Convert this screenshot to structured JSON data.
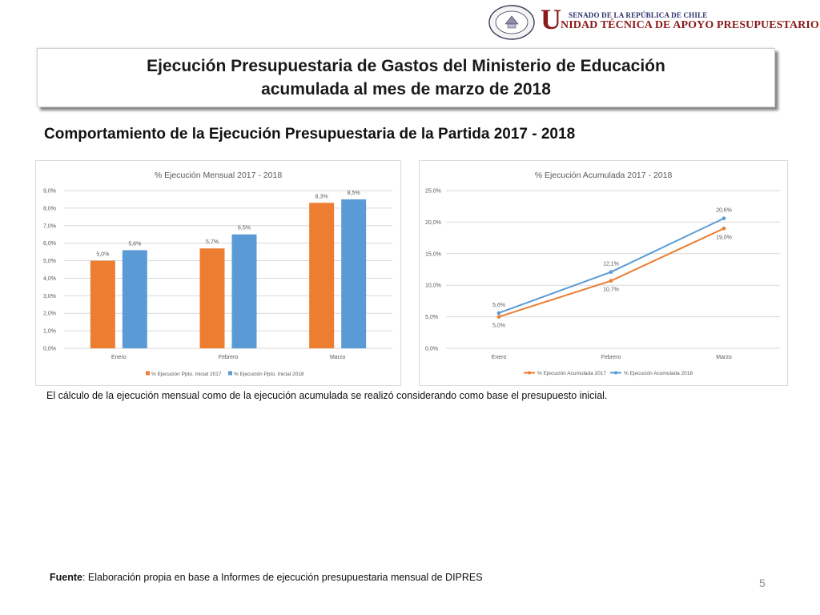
{
  "header": {
    "seal_text_top": "REPÚBLICA DE CHILE",
    "seal_text_bottom": "SENADO",
    "org_line1": "SENADO DE LA REPÚBLICA DE CHILE",
    "org_initial": "U",
    "org_line2": "NIDAD TÉCNICA DE APOYO PRESUPUESTARIO"
  },
  "title": {
    "line1": "Ejecución Presupuestaria de Gastos del Ministerio de Educación",
    "line2": "acumulada al mes de marzo de 2018"
  },
  "subtitle": "Comportamiento de la Ejecución Presupuestaria de la Partida 2017 - 2018",
  "note": "El cálculo de la ejecución mensual como de la ejecución acumulada se realizó considerando como base el presupuesto inicial.",
  "source": {
    "label": "Fuente",
    "text": ": Elaboración propia en base  a Informes de ejecución presupuestaria mensual de DIPRES"
  },
  "page_number": "5",
  "colors": {
    "series_2017": "#ed7d31",
    "series_2018": "#5b9bd5",
    "grid": "#d9d9d9",
    "axis_text": "#595959"
  },
  "chart_data": [
    {
      "type": "bar",
      "title": "% Ejecución Mensual 2017 - 2018",
      "categories": [
        "Enero",
        "Febrero",
        "Marzo"
      ],
      "series": [
        {
          "name": "% Ejecución Ppto. Inicial 2017",
          "values": [
            5.0,
            5.7,
            8.3
          ],
          "labels": [
            "5,0%",
            "5,7%",
            "8,3%"
          ],
          "color": "#ed7d31"
        },
        {
          "name": "% Ejecución Ppto. Inicial 2018",
          "values": [
            5.6,
            6.5,
            8.5
          ],
          "labels": [
            "5,6%",
            "6,5%",
            "8,5%"
          ],
          "color": "#5b9bd5"
        }
      ],
      "ylim": [
        0,
        9
      ],
      "yticks": [
        0,
        1,
        2,
        3,
        4,
        5,
        6,
        7,
        8,
        9
      ],
      "ytick_labels": [
        "0,0%",
        "1,0%",
        "2,0%",
        "3,0%",
        "4,0%",
        "5,0%",
        "6,0%",
        "7,0%",
        "8,0%",
        "9,0%"
      ],
      "grid": true,
      "legend": "bottom"
    },
    {
      "type": "line",
      "title": "% Ejecución Acumulada 2017 - 2018",
      "categories": [
        "Enero",
        "Febrero",
        "Marzo"
      ],
      "series": [
        {
          "name": "% Ejecución Acumulada 2017",
          "values": [
            5.0,
            10.7,
            19.0
          ],
          "labels": [
            "5,0%",
            "10,7%",
            "19,0%"
          ],
          "color": "#ed7d31"
        },
        {
          "name": "% Ejecución Acumulada 2018",
          "values": [
            5.6,
            12.1,
            20.6
          ],
          "labels": [
            "5,6%",
            "12,1%",
            "20,6%"
          ],
          "color": "#5b9bd5"
        }
      ],
      "ylim": [
        0,
        25
      ],
      "yticks": [
        0,
        5,
        10,
        15,
        20,
        25
      ],
      "ytick_labels": [
        "0,0%",
        "5,0%",
        "10,0%",
        "15,0%",
        "20,0%",
        "25,0%"
      ],
      "grid": true,
      "legend": "bottom"
    }
  ]
}
